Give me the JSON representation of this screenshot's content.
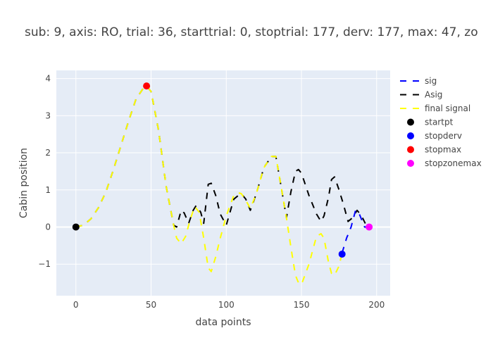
{
  "chart_data": {
    "type": "line",
    "title": "sub: 9, axis: RO, trial: 36, starttrial: 0, stoptrial: 177, derv: 177, max: 47, zo",
    "xlabel": "data points",
    "ylabel": "Cabin position",
    "xlim": [
      -13,
      209
    ],
    "ylim": [
      -1.85,
      4.22
    ],
    "xticks": [
      0,
      50,
      100,
      150,
      200
    ],
    "yticks": [
      -1,
      0,
      1,
      2,
      3,
      4
    ],
    "xtick_labels": [
      "0",
      "50",
      "100",
      "150",
      "200"
    ],
    "ytick_labels": [
      "−1",
      "0",
      "1",
      "2",
      "3",
      "4"
    ],
    "grid": true,
    "legend_position": "right",
    "series": [
      {
        "name": "sig",
        "color": "#0000ff",
        "dash": "dash",
        "x": [
          177,
          180,
          183,
          186,
          188,
          190,
          192,
          195
        ],
        "y": [
          -0.7,
          -0.3,
          0.0,
          0.45,
          0.4,
          0.2,
          0.0,
          0.0
        ]
      },
      {
        "name": "Asig",
        "color": "#000000",
        "dash": "dash",
        "x": [
          0,
          5,
          10,
          15,
          20,
          25,
          30,
          35,
          40,
          45,
          47,
          50,
          55,
          60,
          65,
          67,
          70,
          72,
          75,
          78,
          80,
          83,
          85,
          88,
          90,
          93,
          96,
          100,
          105,
          108,
          110,
          113,
          116,
          120,
          125,
          130,
          133,
          136,
          140,
          143,
          146,
          148,
          150,
          155,
          158,
          160,
          163,
          165,
          168,
          170,
          172,
          175,
          178,
          181,
          184,
          187,
          190,
          193,
          195
        ],
        "y": [
          0.0,
          0.05,
          0.22,
          0.52,
          0.95,
          1.55,
          2.2,
          2.85,
          3.45,
          3.75,
          3.8,
          3.65,
          2.6,
          1.1,
          0.05,
          0.0,
          0.45,
          0.38,
          0.1,
          0.45,
          0.58,
          0.4,
          0.1,
          1.15,
          1.18,
          0.85,
          0.35,
          0.05,
          0.75,
          0.85,
          0.9,
          0.75,
          0.45,
          0.9,
          1.6,
          1.9,
          1.9,
          1.2,
          0.25,
          0.95,
          1.5,
          1.55,
          1.45,
          0.85,
          0.55,
          0.35,
          0.15,
          0.3,
          0.8,
          1.28,
          1.35,
          1.0,
          0.6,
          0.15,
          0.25,
          0.45,
          0.3,
          0.05,
          0.0
        ]
      },
      {
        "name": "final signal",
        "color": "#ffff00",
        "dash": "dash",
        "x": [
          0,
          5,
          10,
          15,
          20,
          25,
          30,
          35,
          40,
          45,
          47,
          50,
          55,
          60,
          65,
          67,
          70,
          73,
          76,
          79,
          82,
          85,
          88,
          90,
          93,
          96,
          100,
          105,
          108,
          110,
          113,
          116,
          120,
          125,
          130,
          133,
          136,
          140,
          143,
          146,
          148,
          150,
          155,
          158,
          160,
          163,
          165,
          168,
          170,
          172,
          175,
          177
        ],
        "y": [
          0.0,
          0.05,
          0.22,
          0.52,
          0.95,
          1.55,
          2.2,
          2.85,
          3.45,
          3.75,
          3.8,
          3.65,
          2.6,
          1.1,
          0.05,
          -0.3,
          -0.45,
          -0.25,
          0.2,
          0.55,
          0.4,
          -0.3,
          -1.1,
          -1.2,
          -0.8,
          -0.3,
          0.3,
          0.85,
          0.92,
          0.9,
          0.72,
          0.5,
          0.9,
          1.6,
          1.9,
          1.9,
          1.2,
          0.25,
          -0.55,
          -1.3,
          -1.5,
          -1.55,
          -1.0,
          -0.55,
          -0.25,
          -0.18,
          -0.3,
          -0.95,
          -1.25,
          -1.3,
          -1.05,
          -0.7
        ]
      },
      {
        "name": "startpt",
        "color": "#000000",
        "mode": "marker",
        "x": [
          0
        ],
        "y": [
          0.0
        ]
      },
      {
        "name": "stopderv",
        "color": "#0000ff",
        "mode": "marker",
        "x": [
          177
        ],
        "y": [
          -0.73
        ]
      },
      {
        "name": "stopmax",
        "color": "#ff0000",
        "mode": "marker",
        "x": [
          47
        ],
        "y": [
          3.8
        ]
      },
      {
        "name": "stopzonemax",
        "color": "#ff00ff",
        "mode": "marker",
        "x": [
          195
        ],
        "y": [
          0.0
        ]
      }
    ]
  }
}
